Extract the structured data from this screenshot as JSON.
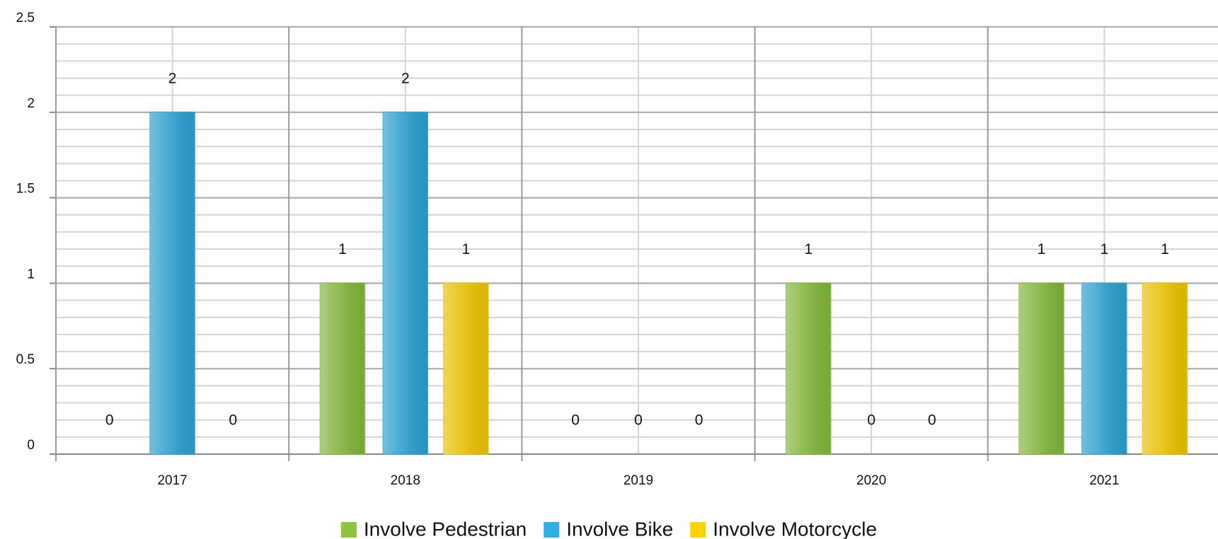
{
  "chart_data": {
    "type": "bar",
    "categories": [
      "2017",
      "2018",
      "2019",
      "2020",
      "2021"
    ],
    "series": [
      {
        "name": "Involve Pedestrian",
        "color": "#8cc63f",
        "values": [
          0,
          1,
          0,
          1,
          1
        ]
      },
      {
        "name": "Involve Bike",
        "color": "#2eaee2",
        "values": [
          2,
          2,
          0,
          0,
          1
        ]
      },
      {
        "name": "Involve Motorcycle",
        "color": "#ffd400",
        "values": [
          0,
          1,
          0,
          0,
          1
        ]
      }
    ],
    "ylim": [
      0,
      2.5
    ],
    "yticks": [
      0,
      0.5,
      1,
      1.5,
      2,
      2.5
    ],
    "minor_yticks": [
      0.1,
      0.2,
      0.3,
      0.4,
      0.6,
      0.7,
      0.8,
      0.9,
      1.1,
      1.2,
      1.3,
      1.4,
      1.6,
      1.7,
      1.8,
      1.9,
      2.1,
      2.2,
      2.3,
      2.4
    ],
    "grid": true,
    "legend": "bottom"
  }
}
